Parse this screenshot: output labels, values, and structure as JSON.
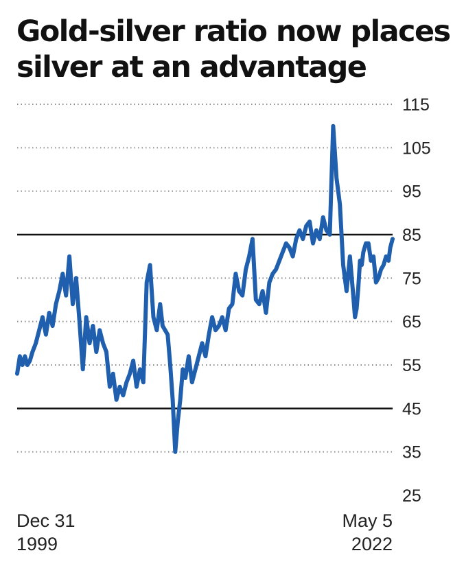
{
  "title_lines": [
    "Gold-silver ratio now places",
    "silver at an advantage"
  ],
  "colors": {
    "line": "#1f5fae",
    "reference": "#111111",
    "grid": "#8a8a8a"
  },
  "chart_data": {
    "type": "line",
    "title": "Gold-silver ratio now places silver at an advantage",
    "x_start": {
      "line1": "Dec 31",
      "line2": "1999"
    },
    "x_end": {
      "line1": "May 5",
      "line2": "2022"
    },
    "xlim": [
      1999.99,
      2022.34
    ],
    "ylim": [
      25,
      115
    ],
    "yticks": [
      115,
      105,
      95,
      85,
      75,
      65,
      55,
      45,
      35,
      25
    ],
    "reference_lines": [
      85,
      45
    ],
    "grid": "dotted horizontal",
    "y_axis_position": "right",
    "series": [
      {
        "x": [
          1999.99,
          2000.15,
          2000.3,
          2000.45,
          2000.6,
          2000.75,
          2000.9,
          2001.1,
          2001.3,
          2001.5,
          2001.7,
          2001.9,
          2002.1,
          2002.3,
          2002.5,
          2002.7,
          2002.9,
          2003.1,
          2003.3,
          2003.5,
          2003.7,
          2003.9,
          2004.1,
          2004.3,
          2004.5,
          2004.7,
          2004.9,
          2005.1,
          2005.3,
          2005.5,
          2005.7,
          2005.9,
          2006.1,
          2006.3,
          2006.5,
          2006.7,
          2006.9,
          2007.1,
          2007.3,
          2007.5,
          2007.7,
          2007.9,
          2008.1,
          2008.3,
          2008.5,
          2008.65,
          2008.8,
          2008.95,
          2009.1,
          2009.25,
          2009.4,
          2009.55,
          2009.7,
          2009.85,
          2010.0,
          2010.2,
          2010.4,
          2010.6,
          2010.8,
          2011.0,
          2011.2,
          2011.4,
          2011.6,
          2011.8,
          2012.0,
          2012.2,
          2012.4,
          2012.6,
          2012.8,
          2013.0,
          2013.2,
          2013.4,
          2013.6,
          2013.8,
          2014.0,
          2014.2,
          2014.4,
          2014.6,
          2014.8,
          2015.0,
          2015.2,
          2015.4,
          2015.6,
          2015.8,
          2016.0,
          2016.2,
          2016.4,
          2016.6,
          2016.8,
          2017.0,
          2017.2,
          2017.4,
          2017.6,
          2017.8,
          2018.0,
          2018.2,
          2018.4,
          2018.6,
          2018.8,
          2019.0,
          2019.2,
          2019.4,
          2019.6,
          2019.8,
          2020.0,
          2020.1,
          2020.2,
          2020.3,
          2020.4,
          2020.5,
          2020.6,
          2020.75,
          2020.9,
          2021.05,
          2021.2,
          2021.35,
          2021.5,
          2021.65,
          2021.8,
          2021.95,
          2022.1,
          2022.2,
          2022.34
        ],
        "values": [
          53,
          57,
          55,
          57,
          55,
          56,
          58,
          60,
          63,
          66,
          62,
          67,
          64,
          69,
          72,
          76,
          71,
          80,
          69,
          75,
          65,
          54,
          66,
          60,
          64,
          58,
          63,
          60,
          58,
          50,
          53,
          47,
          50,
          48,
          51,
          53,
          56,
          50,
          54,
          51,
          74,
          78,
          66,
          63,
          69,
          64,
          63,
          62,
          55,
          47,
          35,
          42,
          47,
          54,
          52,
          57,
          51,
          54,
          57,
          60,
          57,
          62,
          66,
          63,
          64,
          66,
          63,
          68,
          69,
          76,
          72,
          71,
          77,
          80,
          84,
          70,
          69,
          72,
          67,
          74,
          76,
          77,
          79,
          81,
          83,
          82,
          80,
          84,
          86,
          84,
          87,
          88,
          83,
          86,
          84,
          89,
          86,
          85,
          110,
          98,
          92,
          78,
          72,
          80,
          71,
          66,
          68,
          73,
          79,
          78,
          81,
          83,
          83,
          79,
          80,
          74,
          75,
          77,
          78,
          80,
          79,
          82,
          84
        ]
      }
    ]
  }
}
